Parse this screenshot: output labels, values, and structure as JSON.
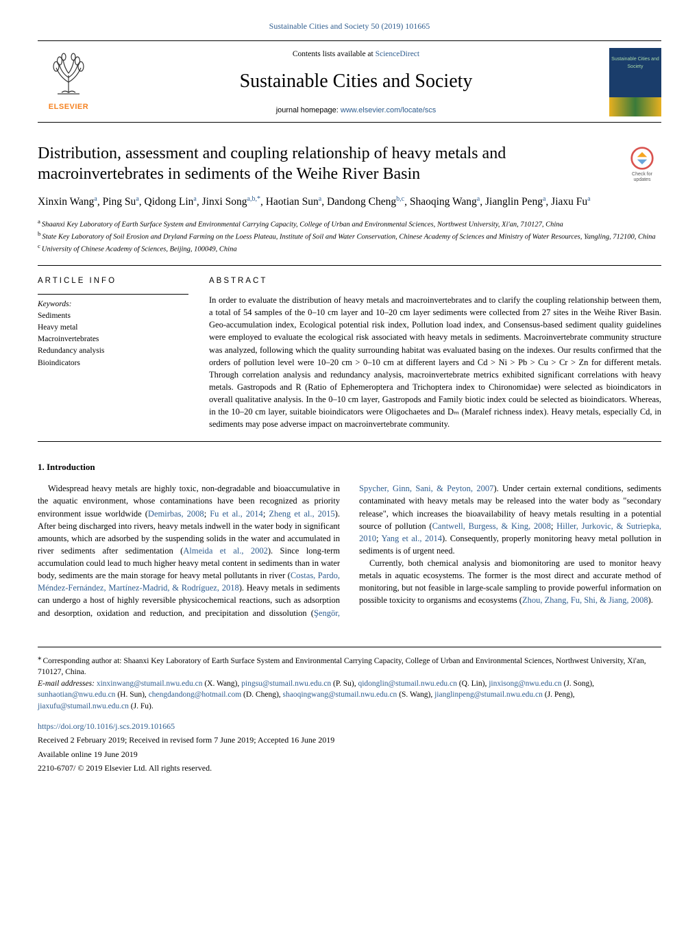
{
  "header": {
    "citation": "Sustainable Cities and Society 50 (2019) 101665",
    "contents_prefix": "Contents lists available at ",
    "contents_link": "ScienceDirect",
    "journal": "Sustainable Cities and Society",
    "homepage_prefix": "journal homepage: ",
    "homepage_link": "www.elsevier.com/locate/scs",
    "publisher_logo_text": "ELSEVIER",
    "cover_label": "Sustainable Cities and Society"
  },
  "updates_badge": {
    "line1": "Check for",
    "line2": "updates"
  },
  "paper": {
    "title": "Distribution, assessment and coupling relationship of heavy metals and macroinvertebrates in sediments of the Weihe River Basin",
    "authors_html": "Xinxin Wang<sup>a</sup>, Ping Su<sup>a</sup>, Qidong Lin<sup>a</sup>, Jinxi Song<sup>a,b,*</sup>, Haotian Sun<sup>a</sup>, Dandong Cheng<sup>b,c</sup>, Shaoqing Wang<sup>a</sup>, Jianglin Peng<sup>a</sup>, Jiaxu Fu<sup>a</sup>",
    "affiliations": {
      "a": "Shaanxi Key Laboratory of Earth Surface System and Environmental Carrying Capacity, College of Urban and Environmental Sciences, Northwest University, Xi'an, 710127, China",
      "b": "State Key Laboratory of Soil Erosion and Dryland Farming on the Loess Plateau, Institute of Soil and Water Conservation, Chinese Academy of Sciences and Ministry of Water Resources, Yangling, 712100, China",
      "c": "University of Chinese Academy of Sciences, Beijing, 100049, China"
    }
  },
  "article_info": {
    "heading": "ARTICLE INFO",
    "keywords_label": "Keywords:",
    "keywords": [
      "Sediments",
      "Heavy metal",
      "Macroinvertebrates",
      "Redundancy analysis",
      "Bioindicators"
    ]
  },
  "abstract": {
    "heading": "ABSTRACT",
    "text": "In order to evaluate the distribution of heavy metals and macroinvertebrates and to clarify the coupling relationship between them, a total of 54 samples of the 0–10 cm layer and 10–20 cm layer sediments were collected from 27 sites in the Weihe River Basin. Geo-accumulation index, Ecological potential risk index, Pollution load index, and Consensus-based sediment quality guidelines were employed to evaluate the ecological risk associated with heavy metals in sediments. Macroinvertebrate community structure was analyzed, following which the quality surrounding habitat was evaluated basing on the indexes. Our results confirmed that the orders of pollution level were 10–20 cm > 0–10 cm at different layers and Cd > Ni > Pb > Cu > Cr > Zn for different metals. Through correlation analysis and redundancy analysis, macroinvertebrate metrics exhibited significant correlations with heavy metals. Gastropods and R (Ratio of Ephemeroptera and Trichoptera index to Chironomidae) were selected as bioindicators in overall qualitative analysis. In the 0–10 cm layer, Gastropods and Family biotic index could be selected as bioindicators. Whereas, in the 10–20 cm layer, suitable bioindicators were Oligochaetes and Dₘ (Maralef richness index). Heavy metals, especially Cd, in sediments may pose adverse impact on macroinvertebrate community."
  },
  "intro": {
    "heading": "1. Introduction",
    "para1_a": "Widespread heavy metals are highly toxic, non-degradable and bioaccumulative in the aquatic environment, whose contaminations have been recognized as priority environment issue worldwide (",
    "ref1": "Demirbas, 2008",
    "para1_b": "; ",
    "ref2": "Fu et al., 2014",
    "para1_c": "; ",
    "ref3": "Zheng et al., 2015",
    "para1_d": "). After being discharged into rivers, heavy metals indwell in the water body in significant amounts, which are adsorbed by the suspending solids in the water and accumulated in river sediments after sedimentation (",
    "ref4": "Almeida et al., 2002",
    "para1_e": "). Since long-term accumulation could lead to much higher heavy metal content in sediments than in water body, sediments are the main storage for heavy metal pollutants in river (",
    "ref5": "Costas, Pardo, Méndez-Fernández, Martínez-Madrid, & Rodríguez, 2018",
    "para1_f": "). Heavy metals in sediments can undergo a host of highly reversible physicochemical ",
    "para1_g": "reactions, such as adsorption and desorption, oxidation and reduction, and precipitation and dissolution (",
    "ref6": "Şengör, Spycher, Ginn, Sani, & Peyton, 2007",
    "para1_h": "). Under certain external conditions, sediments contaminated with heavy metals may be released into the water body as \"secondary release\", which increases the bioavailability of heavy metals resulting in a potential source of pollution (",
    "ref7": "Cantwell, Burgess, & King, 2008",
    "para1_i": "; ",
    "ref8": "Hiller, Jurkovic, & Sutriepka, 2010",
    "para1_j": "; ",
    "ref9": "Yang et al., 2014",
    "para1_k": "). Consequently, properly monitoring heavy metal pollution in sediments is of urgent need.",
    "para2_a": "Currently, both chemical analysis and biomonitoring are used to monitor heavy metals in aquatic ecosystems. The former is the most direct and accurate method of monitoring, but not feasible in large-scale sampling to provide powerful information on possible toxicity to organisms and ecosystems (",
    "ref10": "Zhou, Zhang, Fu, Shi, & Jiang, 2008",
    "para2_b": ")."
  },
  "footnotes": {
    "corr": "Corresponding author at: Shaanxi Key Laboratory of Earth Surface System and Environmental Carrying Capacity, College of Urban and Environmental Sciences, Northwest University, Xi'an, 710127, China.",
    "emails_label": "E-mail addresses: ",
    "emails": [
      {
        "addr": "xinxinwang@stumail.nwu.edu.cn",
        "who": " (X. Wang), "
      },
      {
        "addr": "pingsu@stumail.nwu.edu.cn",
        "who": " (P. Su), "
      },
      {
        "addr": "qidonglin@stumail.nwu.edu.cn",
        "who": " (Q. Lin), "
      },
      {
        "addr": "jinxisong@nwu.edu.cn",
        "who": " (J. Song), "
      },
      {
        "addr": "sunhaotian@nwu.edu.cn",
        "who": " (H. Sun), "
      },
      {
        "addr": "chengdandong@hotmail.com",
        "who": " (D. Cheng), "
      },
      {
        "addr": "shaoqingwang@stumail.nwu.edu.cn",
        "who": " (S. Wang), "
      },
      {
        "addr": "jianglinpeng@stumail.nwu.edu.cn",
        "who": " (J. Peng), "
      },
      {
        "addr": "jiaxufu@stumail.nwu.edu.cn",
        "who": " (J. Fu)."
      }
    ],
    "doi": "https://doi.org/10.1016/j.scs.2019.101665",
    "history": "Received 2 February 2019; Received in revised form 7 June 2019; Accepted 16 June 2019",
    "online": "Available online 19 June 2019",
    "copyright": "2210-6707/ © 2019 Elsevier Ltd. All rights reserved."
  },
  "colors": {
    "link": "#2e5c8e",
    "elsevier_orange": "#f58220",
    "cover_bg": "#1a3d6b",
    "badge_ring": "#d9534f",
    "badge_mark": "#f5a623"
  }
}
